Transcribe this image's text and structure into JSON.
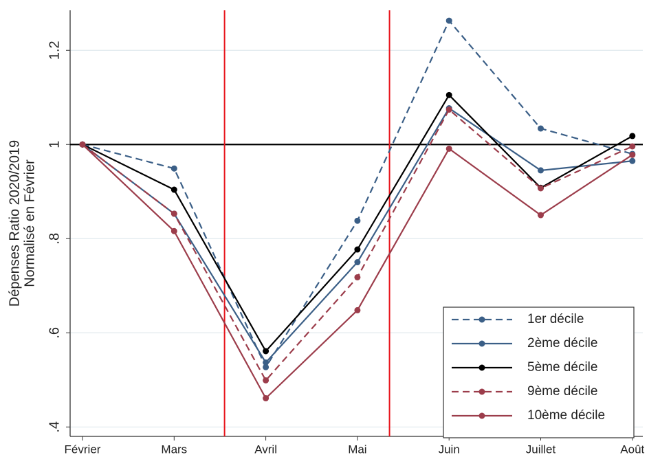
{
  "chart_data": {
    "type": "line",
    "ylabel": [
      "Dépenses Ratio 2020/2019",
      "Normalisé en Février"
    ],
    "categories": [
      "Février",
      "Mars",
      "Avril",
      "Mai",
      "Juin",
      "Juillet",
      "Août"
    ],
    "series": [
      {
        "name": "1er décile",
        "color": "#3b5f87",
        "dashed": true,
        "values": [
          1,
          0.949,
          0.527,
          0.838,
          1.263,
          1.034,
          0.98
        ]
      },
      {
        "name": "2ème décile",
        "color": "#3b5f87",
        "dashed": false,
        "values": [
          1,
          0.853,
          0.537,
          0.75,
          1.077,
          0.945,
          0.965
        ]
      },
      {
        "name": "5ème décile",
        "color": "#000000",
        "dashed": false,
        "values": [
          1,
          0.904,
          0.561,
          0.777,
          1.105,
          0.908,
          1.018
        ]
      },
      {
        "name": "9ème décile",
        "color": "#9c3d4b",
        "dashed": true,
        "values": [
          1,
          0.853,
          0.499,
          0.718,
          1.074,
          0.907,
          0.996
        ]
      },
      {
        "name": "10ème décile",
        "color": "#9c3d4b",
        "dashed": false,
        "values": [
          1,
          0.816,
          0.461,
          0.648,
          0.991,
          0.85,
          0.978
        ]
      }
    ],
    "ylim": [
      0.38,
      1.285
    ],
    "yticks": [
      {
        "value": 0.4,
        "label": ".4"
      },
      {
        "value": 0.6,
        "label": ".6"
      },
      {
        "value": 0.8,
        "label": ".8"
      },
      1,
      1.2
    ],
    "grid": true,
    "hline": {
      "y": 1,
      "color": "#000000"
    },
    "vlines": [
      {
        "x": 1.55,
        "color": "#e8141b"
      },
      {
        "x": 3.35,
        "color": "#e8141b"
      }
    ],
    "legend": "lower right"
  }
}
